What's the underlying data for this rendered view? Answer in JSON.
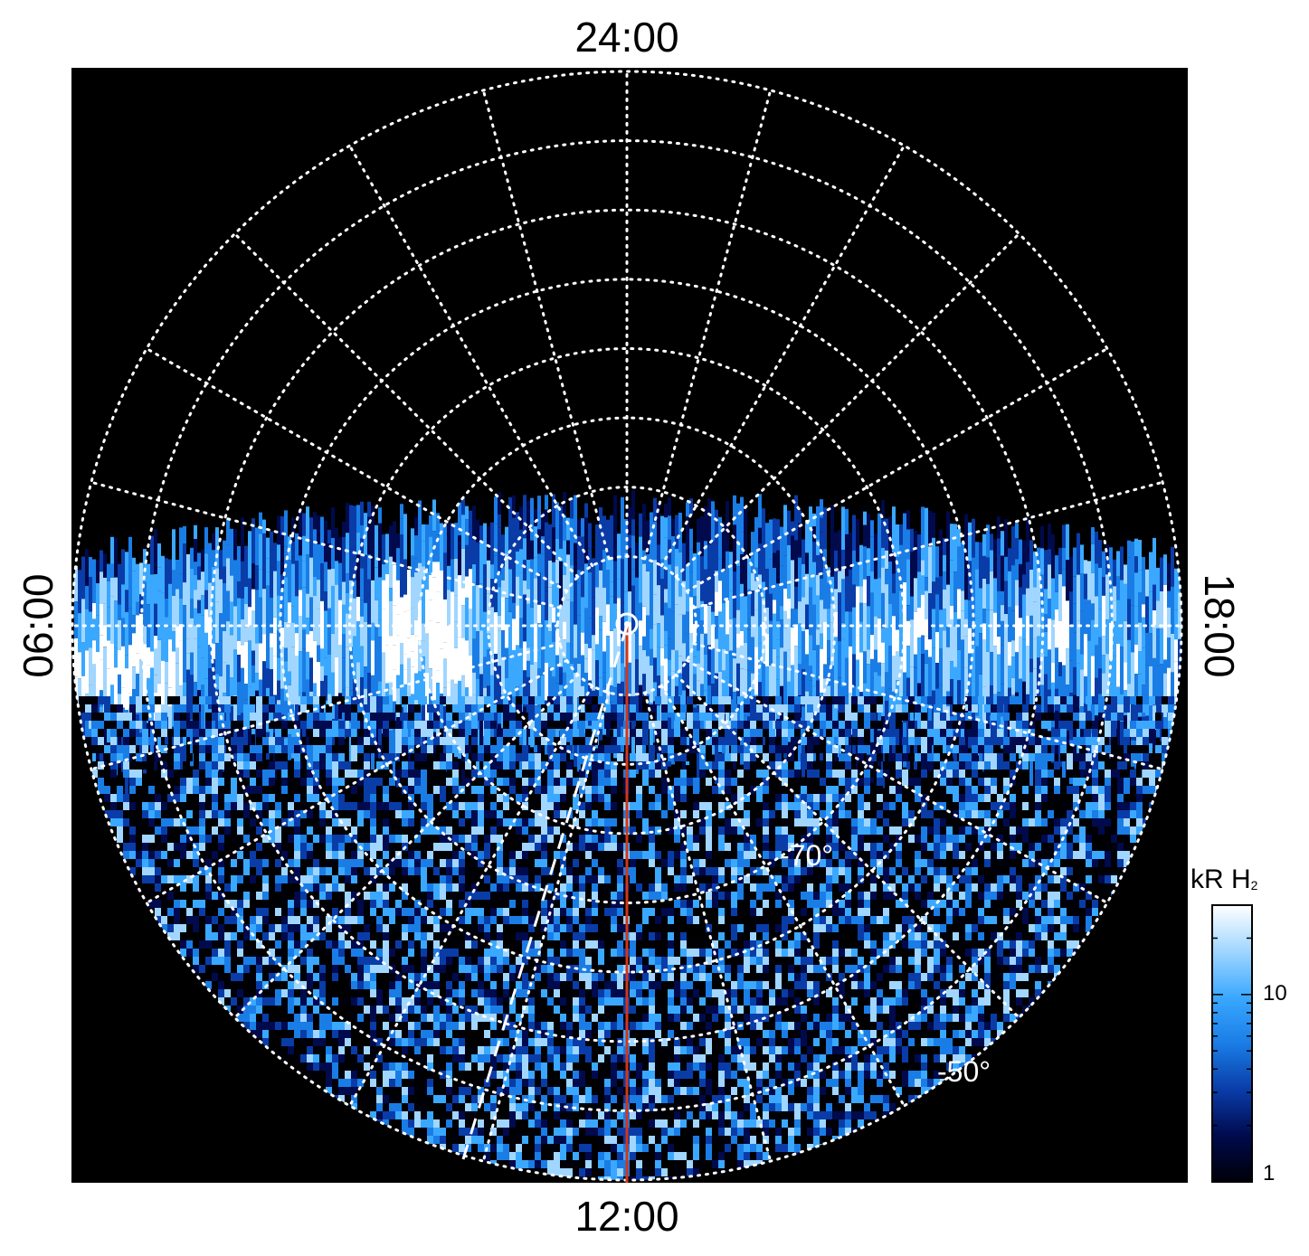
{
  "plot": {
    "local_time_labels": {
      "top": "24:00",
      "bottom": "12:00",
      "left": "06:00",
      "right": "18:00"
    },
    "latitude_labels": [
      "-70°",
      "-50°"
    ],
    "latitude_circles_deg": [
      -85,
      -80,
      -75,
      -70,
      -65,
      -60,
      -55,
      -50
    ],
    "meridian_count": 24,
    "background_color": "#000000",
    "grid_color": "#ffffff",
    "meridian_line_color": "#d2361a",
    "projection": "south-pole polar",
    "coverage": "dayside and dusk/dawn flanks, nightside empty"
  },
  "colorbar": {
    "title": "kR H",
    "title_subscript": "2",
    "scale": "log",
    "ticks": [
      "10",
      "1"
    ],
    "tick_values": [
      10,
      1
    ],
    "range": [
      1,
      30
    ],
    "colors": [
      "#000008",
      "#000a4d",
      "#0a3ca8",
      "#1a7de6",
      "#3aa8ff",
      "#a0d6ff",
      "#ffffff"
    ]
  }
}
